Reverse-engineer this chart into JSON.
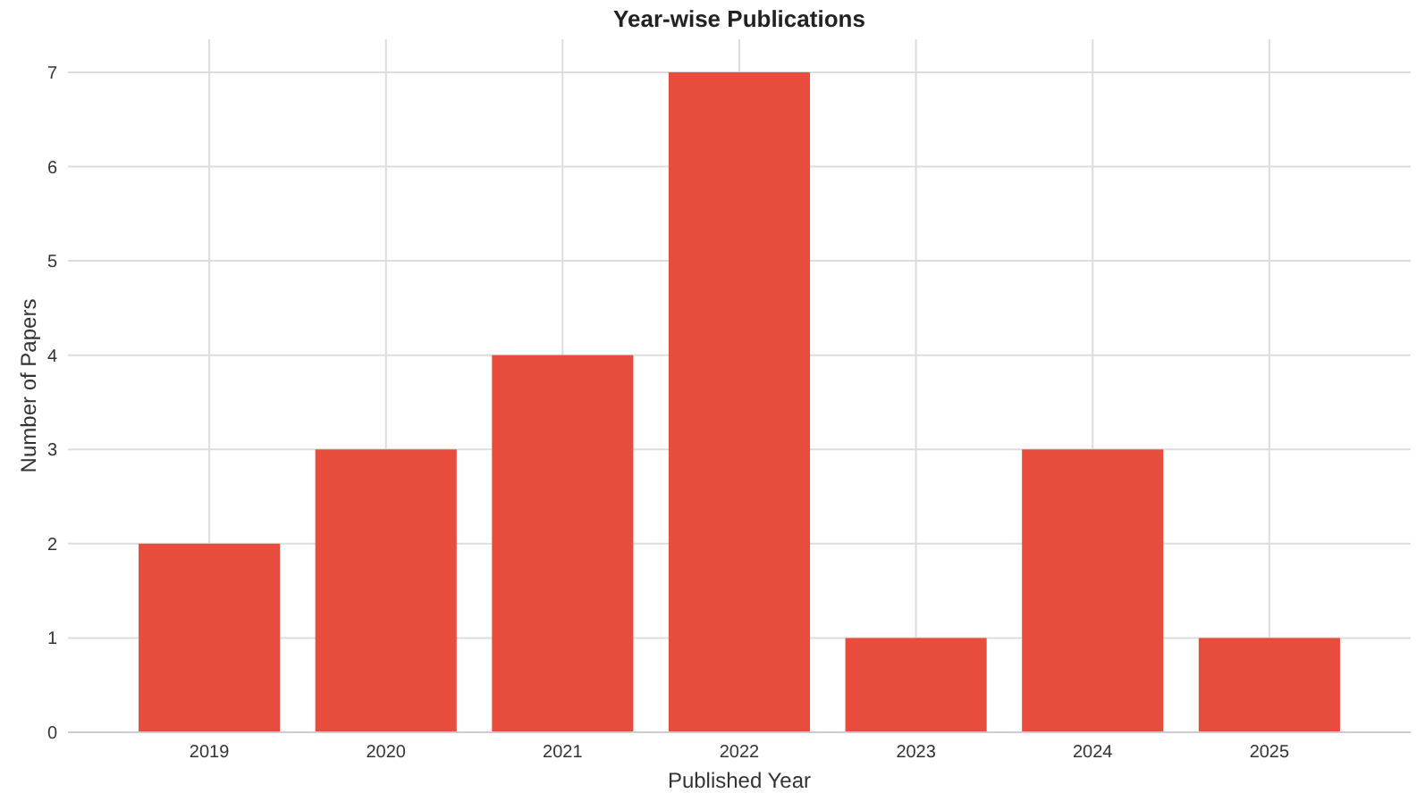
{
  "chart_data": {
    "type": "bar",
    "title": "Year-wise Publications",
    "xlabel": "Published Year",
    "ylabel": "Number of Papers",
    "categories": [
      "2019",
      "2020",
      "2021",
      "2022",
      "2023",
      "2024",
      "2025"
    ],
    "values": [
      2,
      3,
      4,
      7,
      1,
      3,
      1
    ],
    "color": "#e74c3c",
    "ylim": [
      0,
      7.35
    ],
    "yticks": [
      0,
      1,
      2,
      3,
      4,
      5,
      6,
      7
    ],
    "grid": true
  }
}
